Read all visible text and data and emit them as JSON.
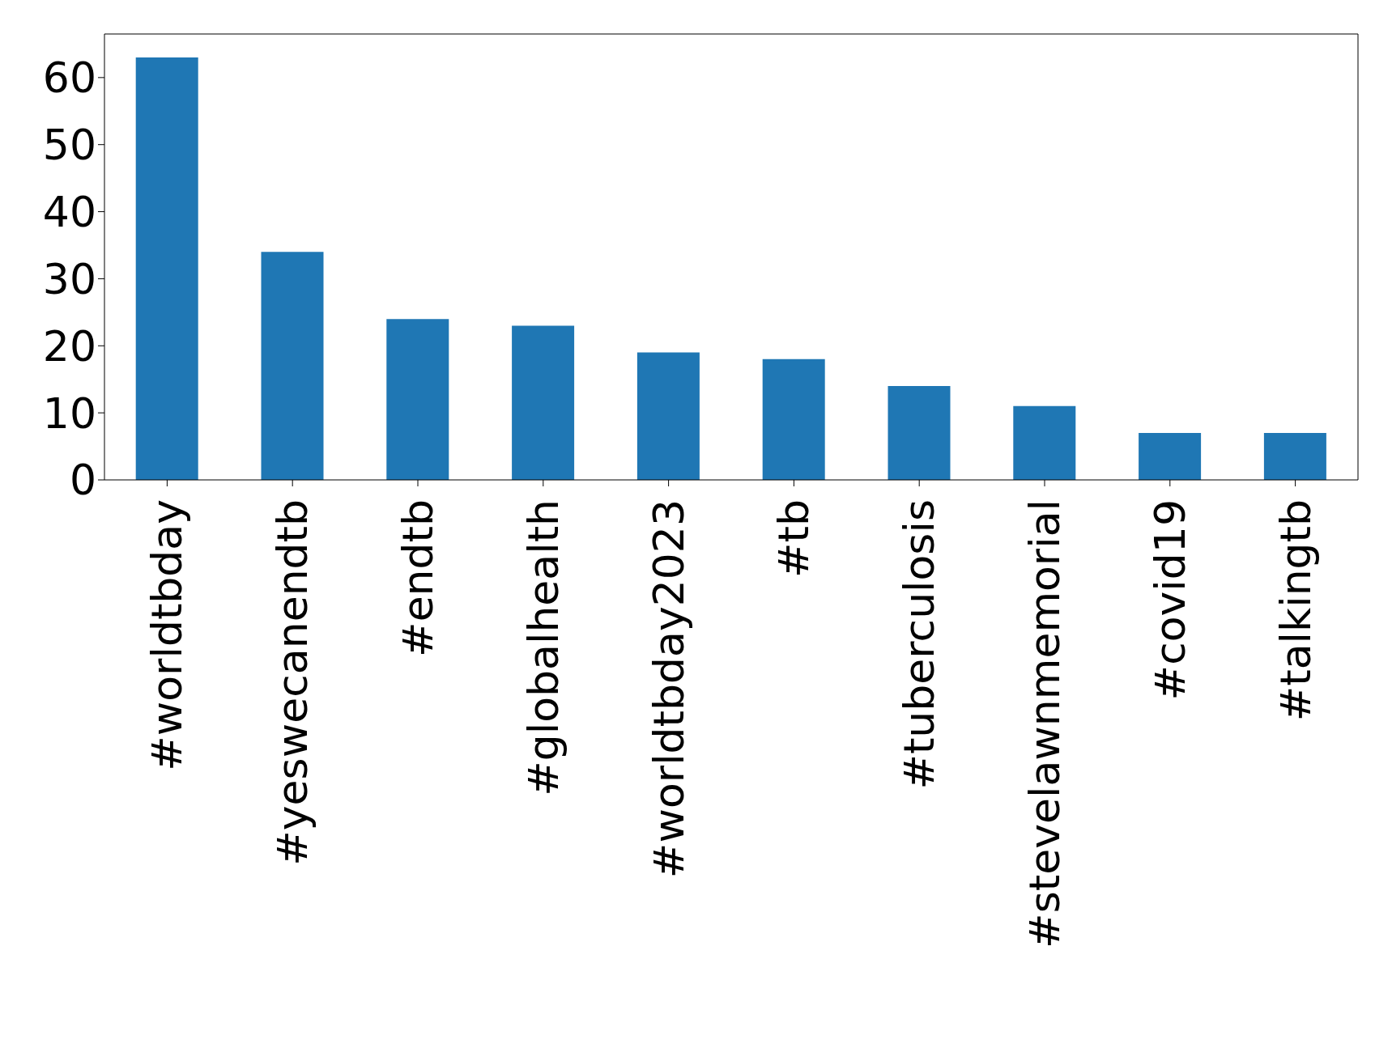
{
  "chart_data": {
    "type": "bar",
    "categories": [
      "#worldtbday",
      "#yeswecanendtb",
      "#endtb",
      "#globalhealth",
      "#worldtbday2023",
      "#tb",
      "#tuberculosis",
      "#stevelawnmemorial",
      "#covid19",
      "#talkingtb"
    ],
    "values": [
      63,
      34,
      24,
      23,
      19,
      18,
      14,
      11,
      7,
      7
    ],
    "color": "#1f77b4",
    "ylim": [
      0,
      66.5
    ],
    "yticks": [
      0,
      10,
      20,
      30,
      40,
      50,
      60
    ],
    "grid": false,
    "legend": false
  }
}
